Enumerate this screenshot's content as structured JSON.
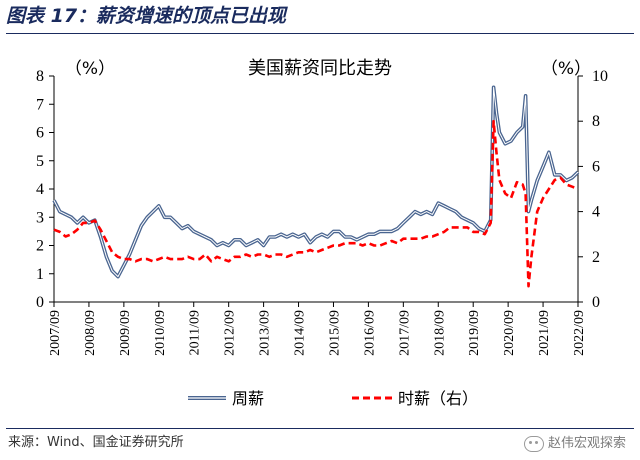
{
  "figure": {
    "title": "图表 17：薪资增速的顶点已出现",
    "source": "来源：Wind、国金证券研究所",
    "watermark": "赵伟宏观探索"
  },
  "chart_data": {
    "type": "line",
    "title": "美国薪资同比走势",
    "y_left": {
      "unit": "（%）",
      "lim": [
        0,
        8
      ],
      "ticks": [
        "0",
        "1",
        "2",
        "3",
        "4",
        "5",
        "6",
        "7",
        "8"
      ]
    },
    "y_right": {
      "unit": "（%）",
      "lim": [
        0,
        10
      ],
      "ticks": [
        "0",
        "2",
        "4",
        "6",
        "8",
        "10"
      ]
    },
    "x_ticks": [
      "2007/09",
      "2008/09",
      "2009/09",
      "2010/09",
      "2011/09",
      "2012/09",
      "2013/09",
      "2014/09",
      "2015/09",
      "2016/09",
      "2017/09",
      "2018/09",
      "2019/09",
      "2020/09",
      "2021/09",
      "2022/09"
    ],
    "x_lim": [
      "2007/09",
      "2022/09"
    ],
    "legend_position": "bottom",
    "colors": {
      "weekly": "#4a6590",
      "hourly": "#ff0000"
    },
    "series": [
      {
        "name": "周薪",
        "axis": "left",
        "style": "solid",
        "points": [
          [
            "2007/09",
            3.6
          ],
          [
            "2007/11",
            3.2
          ],
          [
            "2008/01",
            3.1
          ],
          [
            "2008/03",
            3.0
          ],
          [
            "2008/05",
            2.8
          ],
          [
            "2008/07",
            3.0
          ],
          [
            "2008/09",
            2.8
          ],
          [
            "2008/11",
            2.9
          ],
          [
            "2009/01",
            2.3
          ],
          [
            "2009/03",
            1.6
          ],
          [
            "2009/05",
            1.1
          ],
          [
            "2009/07",
            0.9
          ],
          [
            "2009/09",
            1.3
          ],
          [
            "2009/11",
            1.7
          ],
          [
            "2010/01",
            2.2
          ],
          [
            "2010/03",
            2.7
          ],
          [
            "2010/05",
            3.0
          ],
          [
            "2010/07",
            3.2
          ],
          [
            "2010/09",
            3.4
          ],
          [
            "2010/11",
            3.0
          ],
          [
            "2011/01",
            3.0
          ],
          [
            "2011/03",
            2.8
          ],
          [
            "2011/05",
            2.6
          ],
          [
            "2011/07",
            2.7
          ],
          [
            "2011/09",
            2.5
          ],
          [
            "2011/11",
            2.4
          ],
          [
            "2012/01",
            2.3
          ],
          [
            "2012/03",
            2.2
          ],
          [
            "2012/05",
            2.0
          ],
          [
            "2012/07",
            2.1
          ],
          [
            "2012/09",
            2.0
          ],
          [
            "2012/11",
            2.2
          ],
          [
            "2013/01",
            2.2
          ],
          [
            "2013/03",
            2.0
          ],
          [
            "2013/05",
            2.1
          ],
          [
            "2013/07",
            2.2
          ],
          [
            "2013/09",
            2.0
          ],
          [
            "2013/11",
            2.3
          ],
          [
            "2014/01",
            2.3
          ],
          [
            "2014/03",
            2.4
          ],
          [
            "2014/05",
            2.3
          ],
          [
            "2014/07",
            2.4
          ],
          [
            "2014/09",
            2.3
          ],
          [
            "2014/11",
            2.4
          ],
          [
            "2015/01",
            2.1
          ],
          [
            "2015/03",
            2.3
          ],
          [
            "2015/05",
            2.4
          ],
          [
            "2015/07",
            2.3
          ],
          [
            "2015/09",
            2.5
          ],
          [
            "2015/11",
            2.5
          ],
          [
            "2016/01",
            2.3
          ],
          [
            "2016/03",
            2.3
          ],
          [
            "2016/05",
            2.2
          ],
          [
            "2016/07",
            2.3
          ],
          [
            "2016/09",
            2.4
          ],
          [
            "2016/11",
            2.4
          ],
          [
            "2017/01",
            2.5
          ],
          [
            "2017/03",
            2.5
          ],
          [
            "2017/05",
            2.5
          ],
          [
            "2017/07",
            2.6
          ],
          [
            "2017/09",
            2.8
          ],
          [
            "2017/11",
            3.0
          ],
          [
            "2018/01",
            3.2
          ],
          [
            "2018/03",
            3.1
          ],
          [
            "2018/05",
            3.2
          ],
          [
            "2018/07",
            3.1
          ],
          [
            "2018/09",
            3.5
          ],
          [
            "2018/11",
            3.4
          ],
          [
            "2019/01",
            3.3
          ],
          [
            "2019/03",
            3.2
          ],
          [
            "2019/05",
            3.0
          ],
          [
            "2019/07",
            2.9
          ],
          [
            "2019/09",
            2.8
          ],
          [
            "2019/11",
            2.6
          ],
          [
            "2020/01",
            2.5
          ],
          [
            "2020/03",
            2.9
          ],
          [
            "2020/04",
            7.6
          ],
          [
            "2020/05",
            6.7
          ],
          [
            "2020/06",
            6.0
          ],
          [
            "2020/08",
            5.6
          ],
          [
            "2020/10",
            5.7
          ],
          [
            "2020/12",
            6.0
          ],
          [
            "2021/02",
            6.2
          ],
          [
            "2021/03",
            7.3
          ],
          [
            "2021/04",
            3.2
          ],
          [
            "2021/05",
            3.6
          ],
          [
            "2021/07",
            4.3
          ],
          [
            "2021/09",
            4.8
          ],
          [
            "2021/11",
            5.3
          ],
          [
            "2022/01",
            4.5
          ],
          [
            "2022/03",
            4.5
          ],
          [
            "2022/05",
            4.3
          ],
          [
            "2022/07",
            4.4
          ],
          [
            "2022/09",
            4.6
          ]
        ]
      },
      {
        "name": "时薪（右）",
        "axis": "right",
        "style": "dashed",
        "points": [
          [
            "2007/09",
            3.2
          ],
          [
            "2007/11",
            3.1
          ],
          [
            "2008/01",
            2.9
          ],
          [
            "2008/03",
            3.0
          ],
          [
            "2008/05",
            3.2
          ],
          [
            "2008/07",
            3.5
          ],
          [
            "2008/09",
            3.5
          ],
          [
            "2008/11",
            3.6
          ],
          [
            "2009/01",
            3.2
          ],
          [
            "2009/03",
            2.7
          ],
          [
            "2009/05",
            2.2
          ],
          [
            "2009/07",
            2.0
          ],
          [
            "2009/09",
            1.9
          ],
          [
            "2009/11",
            1.9
          ],
          [
            "2010/01",
            1.8
          ],
          [
            "2010/03",
            1.9
          ],
          [
            "2010/05",
            1.9
          ],
          [
            "2010/07",
            1.8
          ],
          [
            "2010/09",
            1.9
          ],
          [
            "2010/11",
            2.0
          ],
          [
            "2011/01",
            1.9
          ],
          [
            "2011/03",
            1.9
          ],
          [
            "2011/05",
            1.9
          ],
          [
            "2011/07",
            2.0
          ],
          [
            "2011/09",
            1.9
          ],
          [
            "2011/11",
            1.9
          ],
          [
            "2012/01",
            2.1
          ],
          [
            "2012/03",
            1.8
          ],
          [
            "2012/05",
            2.0
          ],
          [
            "2012/07",
            1.9
          ],
          [
            "2012/09",
            1.8
          ],
          [
            "2012/11",
            2.0
          ],
          [
            "2013/01",
            2.0
          ],
          [
            "2013/03",
            2.1
          ],
          [
            "2013/05",
            2.0
          ],
          [
            "2013/07",
            2.1
          ],
          [
            "2013/09",
            2.1
          ],
          [
            "2013/11",
            2.0
          ],
          [
            "2014/01",
            2.1
          ],
          [
            "2014/03",
            2.1
          ],
          [
            "2014/05",
            2.0
          ],
          [
            "2014/07",
            2.1
          ],
          [
            "2014/09",
            2.2
          ],
          [
            "2014/11",
            2.2
          ],
          [
            "2015/01",
            2.3
          ],
          [
            "2015/03",
            2.2
          ],
          [
            "2015/05",
            2.3
          ],
          [
            "2015/07",
            2.4
          ],
          [
            "2015/09",
            2.5
          ],
          [
            "2015/11",
            2.5
          ],
          [
            "2016/01",
            2.6
          ],
          [
            "2016/03",
            2.6
          ],
          [
            "2016/05",
            2.6
          ],
          [
            "2016/07",
            2.5
          ],
          [
            "2016/09",
            2.6
          ],
          [
            "2016/11",
            2.5
          ],
          [
            "2017/01",
            2.5
          ],
          [
            "2017/03",
            2.6
          ],
          [
            "2017/05",
            2.7
          ],
          [
            "2017/07",
            2.6
          ],
          [
            "2017/09",
            2.8
          ],
          [
            "2017/11",
            2.8
          ],
          [
            "2018/01",
            2.8
          ],
          [
            "2018/03",
            2.8
          ],
          [
            "2018/05",
            2.9
          ],
          [
            "2018/07",
            2.9
          ],
          [
            "2018/09",
            3.0
          ],
          [
            "2018/11",
            3.1
          ],
          [
            "2019/01",
            3.3
          ],
          [
            "2019/03",
            3.3
          ],
          [
            "2019/05",
            3.3
          ],
          [
            "2019/07",
            3.3
          ],
          [
            "2019/09",
            3.1
          ],
          [
            "2019/11",
            3.1
          ],
          [
            "2020/01",
            3.0
          ],
          [
            "2020/03",
            3.5
          ],
          [
            "2020/04",
            8.0
          ],
          [
            "2020/05",
            6.6
          ],
          [
            "2020/06",
            5.4
          ],
          [
            "2020/08",
            4.8
          ],
          [
            "2020/10",
            4.6
          ],
          [
            "2020/12",
            5.3
          ],
          [
            "2021/02",
            5.2
          ],
          [
            "2021/03",
            4.8
          ],
          [
            "2021/04",
            0.7
          ],
          [
            "2021/05",
            2.0
          ],
          [
            "2021/07",
            4.0
          ],
          [
            "2021/09",
            4.6
          ],
          [
            "2021/11",
            5.0
          ],
          [
            "2022/01",
            5.4
          ],
          [
            "2022/03",
            5.5
          ],
          [
            "2022/05",
            5.2
          ],
          [
            "2022/07",
            5.1
          ],
          [
            "2022/09",
            5.0
          ]
        ]
      }
    ]
  }
}
